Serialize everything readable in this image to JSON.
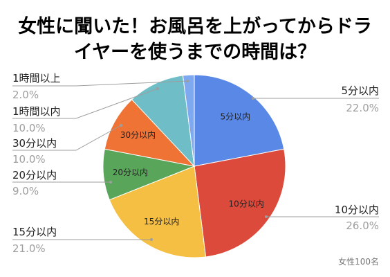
{
  "note": "女性100名",
  "chart_data": {
    "type": "pie",
    "title": "女性に聞いた！お風呂を上がってからドライヤーを使うまでの時間は？",
    "categories": [
      "5分以内",
      "10分以内",
      "15分以内",
      "20分以内",
      "30分以内",
      "1時間以内",
      "1時間以上"
    ],
    "values": [
      22.0,
      26.0,
      21.0,
      9.0,
      10.0,
      10.0,
      2.0
    ],
    "value_labels": [
      "22.0%",
      "26.0%",
      "21.0%",
      "9.0%",
      "10.0%",
      "10.0%",
      "2.0%"
    ],
    "inside_label_shown": [
      true,
      true,
      true,
      true,
      true,
      false,
      false
    ],
    "colors": [
      "#5a88e6",
      "#db4a3b",
      "#f4bf42",
      "#59a65b",
      "#ee7335",
      "#6fbdc6",
      "#7ea8f0"
    ]
  }
}
